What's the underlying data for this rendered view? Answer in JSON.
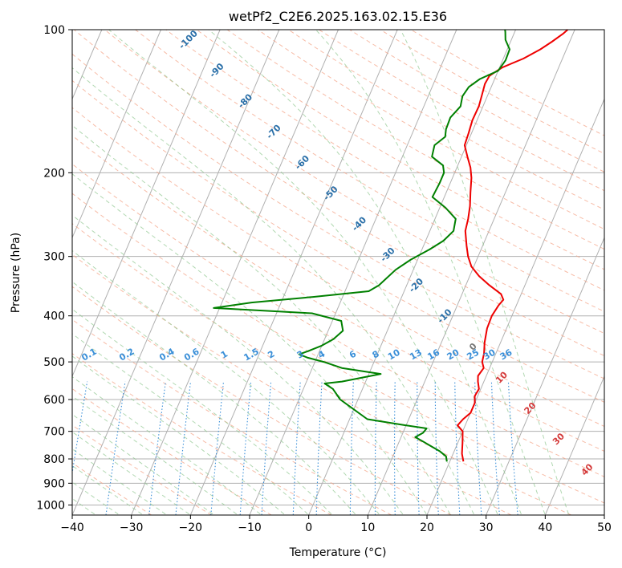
{
  "chart_data": {
    "type": "line",
    "title": "wetPf2_C2E6.2025.163.02.15.E36",
    "xlabel": "Temperature (°C)",
    "ylabel": "Pressure (hPa)",
    "xlim": [
      -40,
      50
    ],
    "ylim": [
      1050,
      100
    ],
    "y_scale": "log",
    "grid": true,
    "x_ticks": [
      -40,
      -30,
      -20,
      -10,
      0,
      10,
      20,
      30,
      40,
      50
    ],
    "y_ticks": [
      100,
      200,
      300,
      400,
      500,
      600,
      700,
      800,
      900,
      1000
    ],
    "series": [
      {
        "role": "temperature",
        "color": "#ee0000",
        "points": [
          [
            22.3,
            810
          ],
          [
            21.5,
            780
          ],
          [
            20.8,
            740
          ],
          [
            20.0,
            700
          ],
          [
            18.7,
            680
          ],
          [
            19.2,
            660
          ],
          [
            20.0,
            640
          ],
          [
            20.0,
            610
          ],
          [
            19.5,
            590
          ],
          [
            19.7,
            570
          ],
          [
            19.0,
            550
          ],
          [
            18.6,
            535
          ],
          [
            19.0,
            515
          ],
          [
            18.3,
            500
          ],
          [
            18.0,
            480
          ],
          [
            17.3,
            455
          ],
          [
            16.7,
            425
          ],
          [
            16.6,
            400
          ],
          [
            17.0,
            380
          ],
          [
            17.4,
            370
          ],
          [
            16.6,
            360
          ],
          [
            14.0,
            345
          ],
          [
            11.6,
            330
          ],
          [
            9.6,
            315
          ],
          [
            8.3,
            300
          ],
          [
            7.3,
            285
          ],
          [
            6.0,
            265
          ],
          [
            5.6,
            250
          ],
          [
            5.0,
            235
          ],
          [
            4.1,
            220
          ],
          [
            3.2,
            205
          ],
          [
            2.3,
            195
          ],
          [
            1.0,
            185
          ],
          [
            -0.3,
            175
          ],
          [
            -0.5,
            165
          ],
          [
            -0.8,
            155
          ],
          [
            -0.7,
            145
          ],
          [
            -1.0,
            137
          ],
          [
            -1.3,
            130
          ],
          [
            -1.1,
            125
          ],
          [
            0.5,
            120
          ],
          [
            3.4,
            115
          ],
          [
            5.6,
            110
          ],
          [
            7.0,
            106
          ],
          [
            8.3,
            102
          ],
          [
            8.8,
            100
          ]
        ]
      },
      {
        "role": "dewpoint",
        "color": "#008000",
        "points": [
          [
            19.5,
            810
          ],
          [
            19.0,
            790
          ],
          [
            17.5,
            770
          ],
          [
            15.5,
            750
          ],
          [
            14.0,
            735
          ],
          [
            12.4,
            720
          ],
          [
            13.4,
            705
          ],
          [
            13.7,
            690
          ],
          [
            10.0,
            680
          ],
          [
            3.0,
            660
          ],
          [
            -3.0,
            600
          ],
          [
            -5.0,
            570
          ],
          [
            -6.8,
            555
          ],
          [
            -4.0,
            550
          ],
          [
            2.0,
            530
          ],
          [
            -5.0,
            515
          ],
          [
            -8.5,
            500
          ],
          [
            -11.5,
            490
          ],
          [
            -13.2,
            482
          ],
          [
            -12.0,
            475
          ],
          [
            -10.0,
            462
          ],
          [
            -8.5,
            448
          ],
          [
            -7.5,
            430
          ],
          [
            -8.5,
            410
          ],
          [
            -14.0,
            395
          ],
          [
            -31.0,
            385
          ],
          [
            -25.0,
            375
          ],
          [
            -15.0,
            365
          ],
          [
            -6.0,
            355
          ],
          [
            -4.7,
            345
          ],
          [
            -3.0,
            320
          ],
          [
            -1.2,
            305
          ],
          [
            1.3,
            290
          ],
          [
            3.0,
            278
          ],
          [
            4.0,
            265
          ],
          [
            3.5,
            250
          ],
          [
            1.0,
            237
          ],
          [
            -2.0,
            225
          ],
          [
            -1.8,
            210
          ],
          [
            -1.8,
            200
          ],
          [
            -2.5,
            193
          ],
          [
            -5.0,
            185
          ],
          [
            -5.4,
            175
          ],
          [
            -4.2,
            168
          ],
          [
            -4.6,
            162
          ],
          [
            -4.7,
            153
          ],
          [
            -3.8,
            145
          ],
          [
            -4.2,
            138
          ],
          [
            -3.8,
            132
          ],
          [
            -2.5,
            127
          ],
          [
            0.0,
            122
          ],
          [
            0.5,
            116
          ],
          [
            0.4,
            110
          ],
          [
            -1.0,
            105
          ],
          [
            -1.6,
            101
          ],
          [
            -1.8,
            100
          ]
        ]
      }
    ],
    "dry_adiabat_labels": [
      "-100",
      "-90",
      "-80",
      "-70",
      "-60",
      "-50",
      "-40",
      "-30",
      "-20",
      "-10",
      "0",
      "10",
      "20",
      "30",
      "40"
    ],
    "mixing_ratio_labels": [
      "0.1",
      "0.2",
      "0.4",
      "0.6",
      "1",
      "1.5",
      "2",
      "3",
      "4",
      "6",
      "8",
      "10",
      "13",
      "16",
      "20",
      "25",
      "30",
      "36"
    ],
    "mixing_ratio_values": [
      0.1,
      0.2,
      0.4,
      0.6,
      1,
      1.5,
      2,
      3,
      4,
      6,
      8,
      10,
      13,
      16,
      20,
      25,
      30,
      36
    ]
  }
}
